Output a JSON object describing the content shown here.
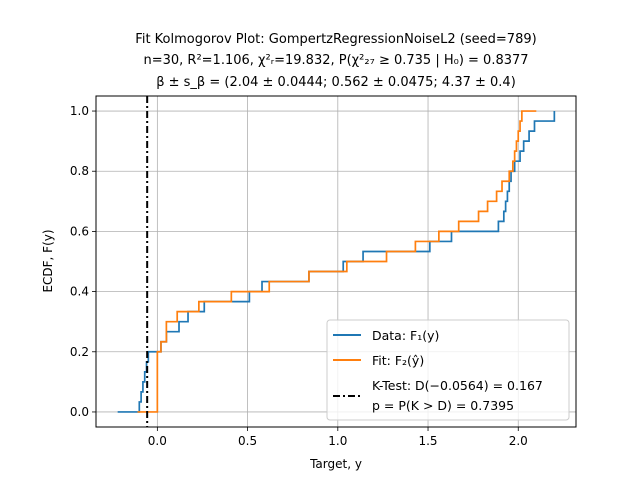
{
  "chart_data": {
    "type": "line",
    "title_lines": [
      "Fit Kolmogorov Plot: GompertzRegressionNoiseL2 (seed=789)",
      "n=30, R²=1.106, χ²ᵣ=19.832, P(χ²₂₇ ≥ 0.735 | H₀) = 0.8377",
      "β ± s_β = (2.04 ± 0.0444; 0.562 ± 0.0475; 4.37 ± 0.4)"
    ],
    "xlabel": "Target, y",
    "ylabel": "ECDF, F(y)",
    "xlim": [
      -0.34,
      2.32
    ],
    "ylim": [
      -0.05,
      1.05
    ],
    "xticks": [
      0.0,
      0.5,
      1.0,
      1.5,
      2.0
    ],
    "xtick_labels": [
      "0.0",
      "0.5",
      "1.0",
      "1.5",
      "2.0"
    ],
    "yticks": [
      0.0,
      0.2,
      0.4,
      0.6,
      0.8,
      1.0
    ],
    "ytick_labels": [
      "0.0",
      "0.2",
      "0.4",
      "0.6",
      "0.8",
      "1.0"
    ],
    "grid": true,
    "legend_position": "lower-right",
    "series": [
      {
        "name": "Data: F₁(y)",
        "color": "#1f77b4",
        "style": "step",
        "x": [
          -0.22,
          -0.1,
          -0.09,
          -0.08,
          -0.07,
          -0.06,
          -0.05,
          0.02,
          0.05,
          0.12,
          0.17,
          0.26,
          0.51,
          0.58,
          0.84,
          1.03,
          1.14,
          1.51,
          1.63,
          1.89,
          1.92,
          1.93,
          1.94,
          1.95,
          1.96,
          1.98,
          2.01,
          2.03,
          2.06,
          2.09,
          2.2
        ],
        "y": [
          0.0,
          0.0333,
          0.0667,
          0.1,
          0.1333,
          0.1667,
          0.2,
          0.2333,
          0.2667,
          0.3,
          0.3333,
          0.3667,
          0.4,
          0.4333,
          0.4667,
          0.5,
          0.5333,
          0.5667,
          0.6,
          0.6333,
          0.6667,
          0.7,
          0.7333,
          0.7667,
          0.8,
          0.8333,
          0.8667,
          0.9,
          0.9333,
          0.9667,
          1.0
        ]
      },
      {
        "name": "Fit: F₂(ŷ)",
        "color": "#ff7f0e",
        "style": "step",
        "x": [
          -0.11,
          0.0,
          0.02,
          0.05,
          0.11,
          0.23,
          0.41,
          0.62,
          0.84,
          1.05,
          1.27,
          1.43,
          1.56,
          1.67,
          1.78,
          1.83,
          1.88,
          1.91,
          1.95,
          1.97,
          1.98,
          1.99,
          2.0,
          2.01,
          2.02,
          2.03,
          2.1
        ],
        "y": [
          0.0,
          0.2,
          0.2333,
          0.3,
          0.3333,
          0.3667,
          0.4,
          0.4333,
          0.4667,
          0.5,
          0.5333,
          0.5667,
          0.6,
          0.6333,
          0.6667,
          0.7,
          0.7333,
          0.7667,
          0.8,
          0.8333,
          0.8667,
          0.9,
          0.9333,
          0.9667,
          1.0,
          1.0,
          1.0
        ]
      }
    ],
    "ktest": {
      "name_line1": "K-Test: D(−0.0564) = 0.167",
      "name_line2": "p = P(K > D) = 0.7395",
      "x": -0.0564,
      "color": "#000000"
    }
  }
}
